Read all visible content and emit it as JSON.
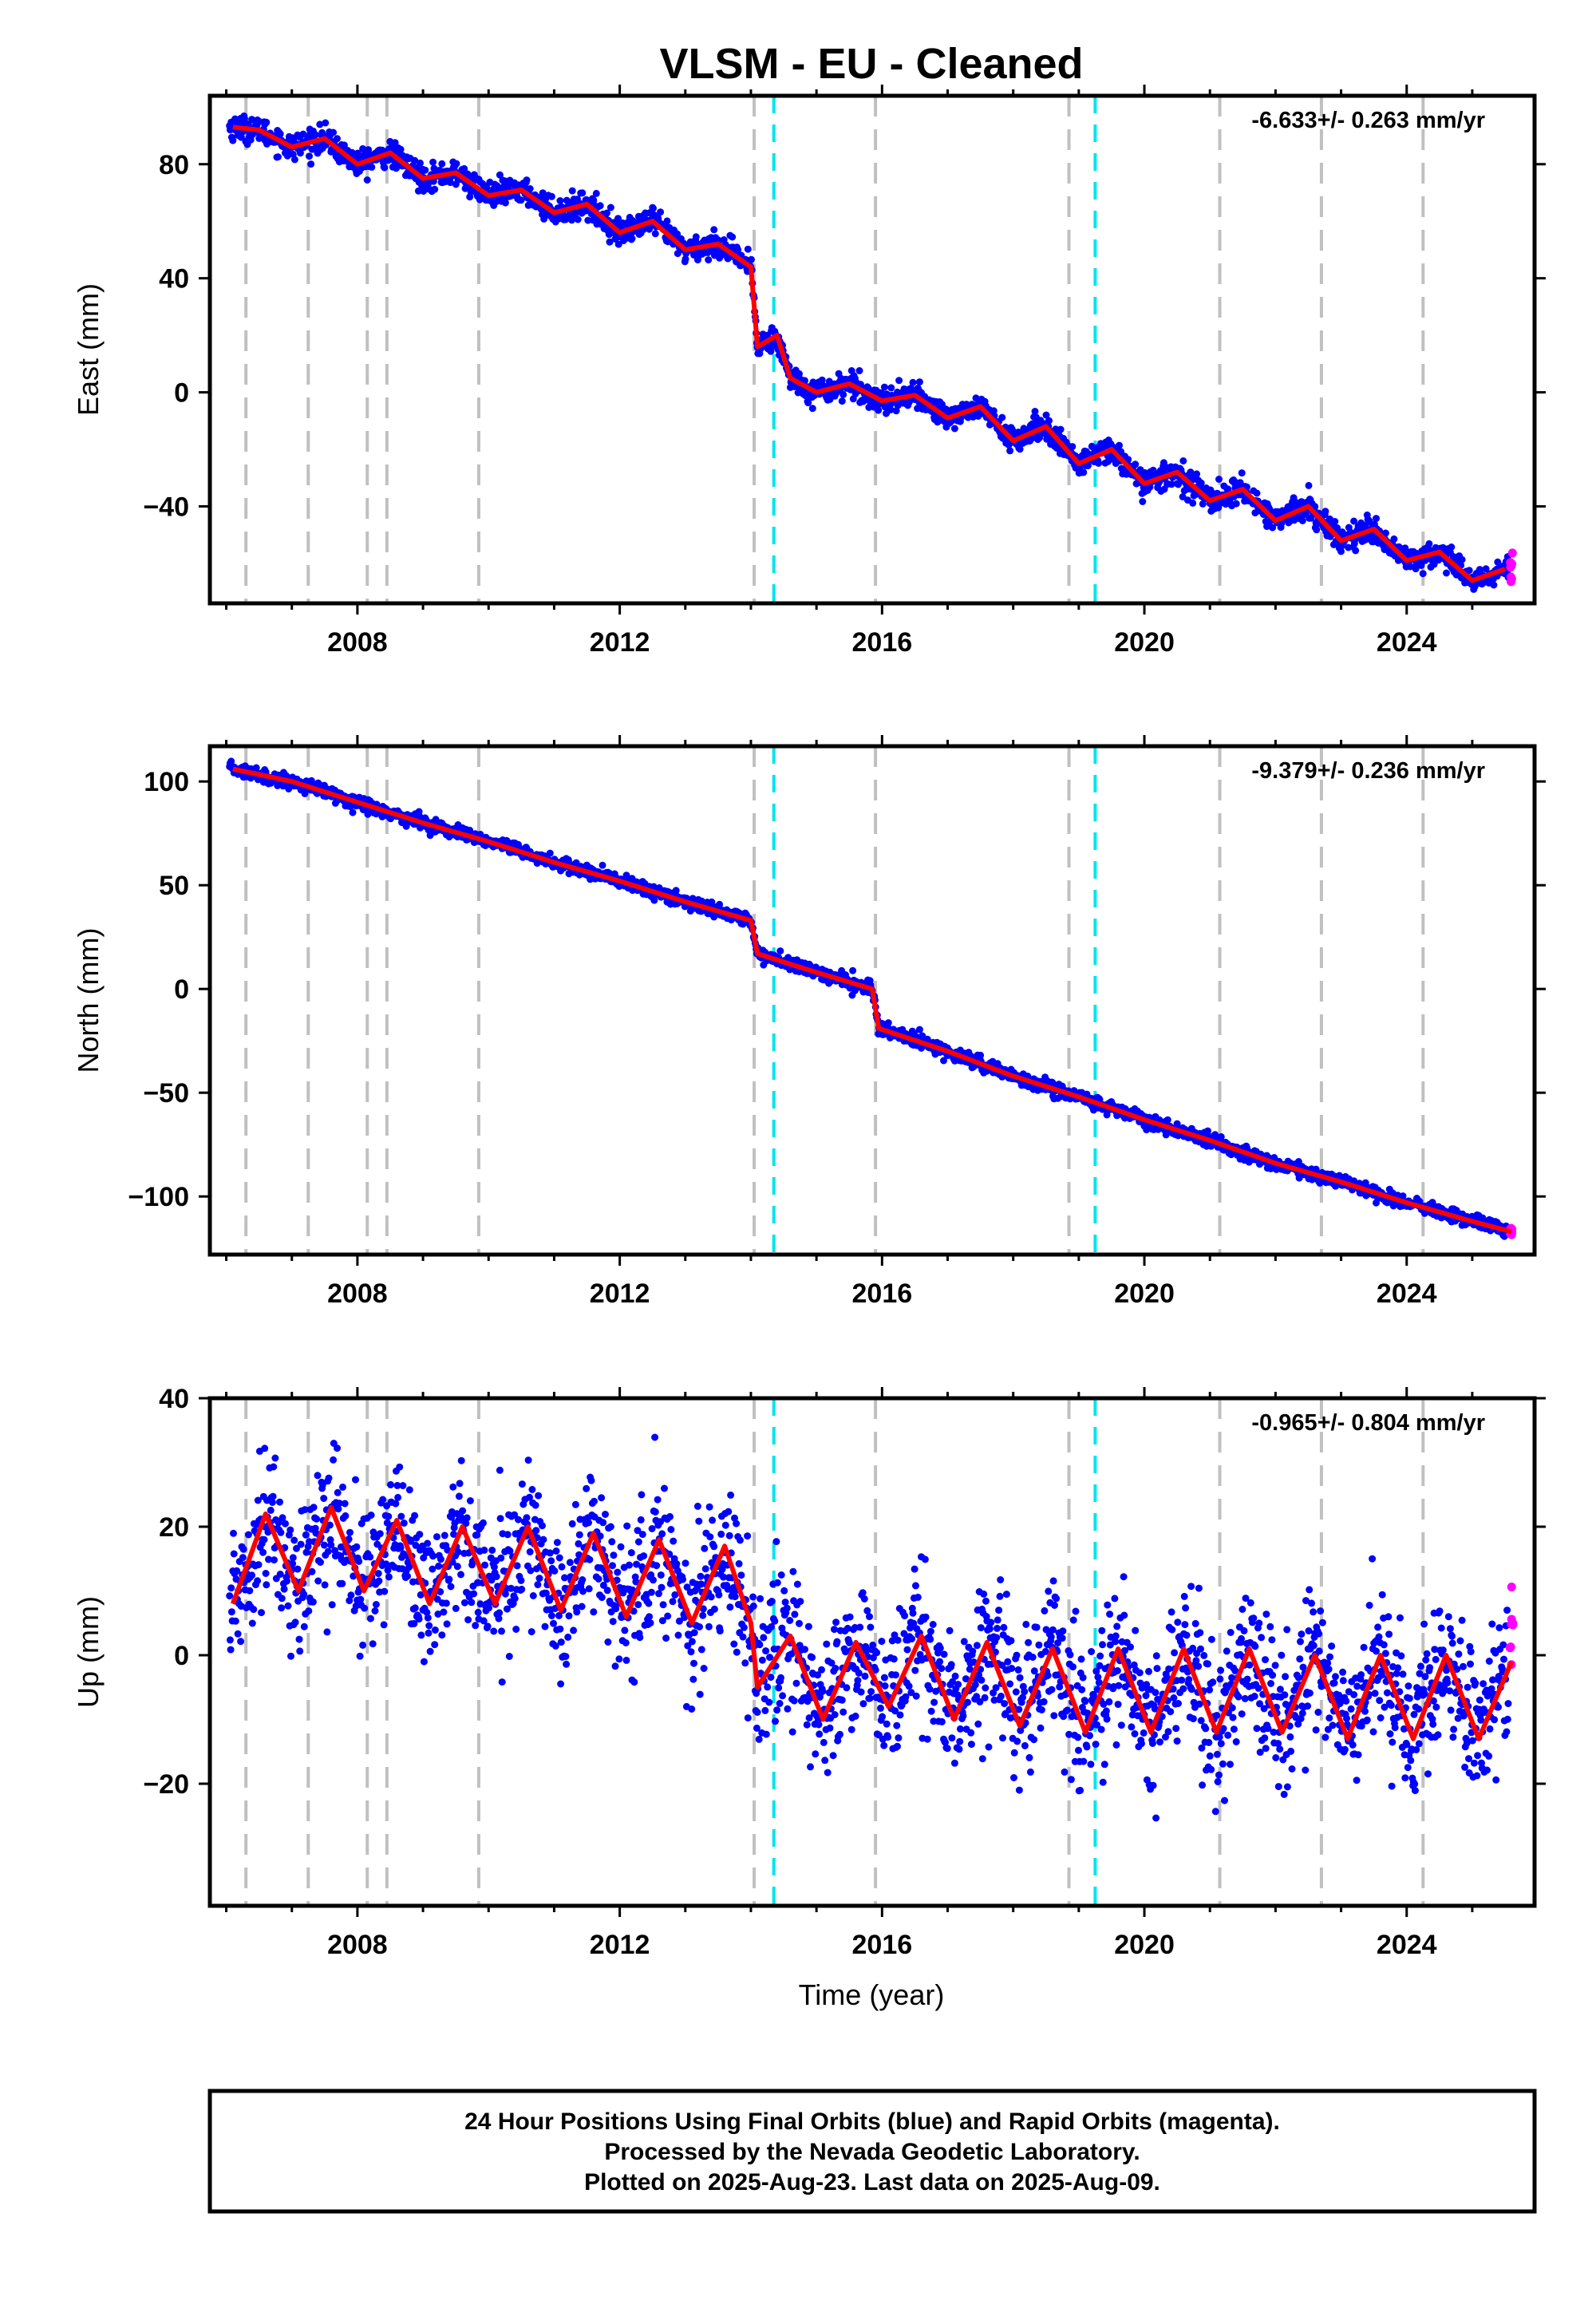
{
  "title": "VLSM  - EU - Cleaned",
  "xlabel": "Time (year)",
  "footer": {
    "line1": "24 Hour Positions Using Final Orbits (blue) and Rapid Orbits (magenta).",
    "line2": "Processed by the Nevada Geodetic Laboratory.",
    "line3": "Plotted on 2025-Aug-23. Last data on 2025-Aug-09."
  },
  "colors": {
    "final_orbits": "#0000ff",
    "rapid_orbits": "#ff00ff",
    "model": "#ff0000",
    "equipment_change": "#c0c0c0",
    "earthquake": "#00e5ee"
  },
  "chart_data": [
    {
      "type": "scatter",
      "component": "East",
      "ylabel": "East (mm)",
      "rate": "-6.633+/- 0.263 mm/yr",
      "xlim": [
        2005.75,
        2025.95
      ],
      "ylim": [
        -74,
        104
      ],
      "xticks": [
        2008,
        2012,
        2016,
        2020,
        2024
      ],
      "yticks": [
        -40,
        0,
        40,
        80
      ],
      "grid": false,
      "gray_dashed_lines": [
        2006.3,
        2007.25,
        2008.15,
        2008.45,
        2009.85,
        2014.05,
        2015.9,
        2018.85,
        2021.15,
        2022.7,
        2024.25
      ],
      "cyan_dashed_lines": [
        2014.35,
        2019.25
      ],
      "series": [
        {
          "x": [
            2006.1,
            2006.5,
            2007.0,
            2007.5,
            2008.0,
            2008.5,
            2009.0,
            2009.5,
            2010.0,
            2010.5,
            2011.0,
            2011.5,
            2012.0,
            2012.5,
            2013.0,
            2013.5,
            2014.0,
            2014.1,
            2014.4,
            2014.6,
            2015.0,
            2015.5,
            2016.0,
            2016.5,
            2017.0,
            2017.5,
            2018.0,
            2018.5,
            2019.0,
            2019.5,
            2020.0,
            2020.5,
            2021.0,
            2021.5,
            2022.0,
            2022.5,
            2023.0,
            2023.5,
            2024.0,
            2024.5,
            2025.0,
            2025.5
          ],
          "y": [
            93,
            92,
            86,
            89,
            80,
            84,
            75,
            77,
            69,
            71,
            63,
            66,
            56,
            60,
            50,
            52,
            44,
            16,
            20,
            5,
            0,
            3,
            -3,
            -1,
            -9,
            -5,
            -17,
            -12,
            -25,
            -20,
            -32,
            -28,
            -38,
            -34,
            -45,
            -40,
            -52,
            -48,
            -59,
            -56,
            -66,
            -62
          ]
        }
      ]
    },
    {
      "type": "scatter",
      "component": "North",
      "ylabel": "North (mm)",
      "rate": "-9.379+/- 0.236 mm/yr",
      "xlim": [
        2005.75,
        2025.95
      ],
      "ylim": [
        -128,
        117
      ],
      "xticks": [
        2008,
        2012,
        2016,
        2020,
        2024
      ],
      "yticks": [
        -100,
        -50,
        0,
        50,
        100
      ],
      "grid": false,
      "gray_dashed_lines": [
        2006.3,
        2007.25,
        2008.15,
        2008.45,
        2009.85,
        2014.05,
        2015.9,
        2018.85,
        2021.15,
        2022.7,
        2024.25
      ],
      "cyan_dashed_lines": [
        2014.35,
        2019.25
      ],
      "series": [
        {
          "x": [
            2006.1,
            2007.0,
            2008.0,
            2009.0,
            2010.0,
            2011.0,
            2012.0,
            2013.0,
            2014.0,
            2014.1,
            2015.0,
            2015.85,
            2015.95,
            2017.0,
            2018.0,
            2019.0,
            2020.0,
            2021.0,
            2022.0,
            2023.0,
            2024.0,
            2025.0,
            2025.6
          ],
          "y": [
            106,
            100,
            90,
            80,
            71,
            61,
            52,
            42,
            33,
            17,
            8,
            0,
            -19,
            -30,
            -42,
            -52,
            -63,
            -73,
            -84,
            -93,
            -103,
            -112,
            -117
          ]
        }
      ]
    },
    {
      "type": "scatter",
      "component": "Up",
      "ylabel": "Up (mm)",
      "rate": "-0.965+/- 0.804 mm/yr",
      "xlim": [
        2005.75,
        2025.95
      ],
      "ylim": [
        -39,
        40
      ],
      "xticks": [
        2008,
        2012,
        2016,
        2020,
        2024
      ],
      "yticks": [
        -20,
        0,
        20,
        40
      ],
      "grid": false,
      "gray_dashed_lines": [
        2006.3,
        2007.25,
        2008.15,
        2008.45,
        2009.85,
        2014.05,
        2015.9,
        2018.85,
        2021.15,
        2022.7,
        2024.25
      ],
      "cyan_dashed_lines": [
        2014.35,
        2019.25
      ],
      "series": [
        {
          "x": [
            2006.1,
            2006.6,
            2007.1,
            2007.6,
            2008.1,
            2008.6,
            2009.1,
            2009.6,
            2010.1,
            2010.6,
            2011.1,
            2011.6,
            2012.1,
            2012.6,
            2013.1,
            2013.6,
            2014.0,
            2014.1,
            2014.6,
            2015.1,
            2015.6,
            2016.1,
            2016.6,
            2017.1,
            2017.6,
            2018.1,
            2018.6,
            2019.1,
            2019.6,
            2020.1,
            2020.6,
            2021.1,
            2021.6,
            2022.1,
            2022.6,
            2023.1,
            2023.6,
            2024.1,
            2024.6,
            2025.1,
            2025.6
          ],
          "y": [
            8,
            22,
            10,
            23,
            10,
            21,
            8,
            20,
            8,
            20,
            7,
            19,
            6,
            18,
            5,
            17,
            5,
            -5,
            3,
            -10,
            2,
            -8,
            3,
            -10,
            2,
            -11,
            1,
            -12,
            1,
            -12,
            1,
            -12,
            1,
            -12,
            0,
            -13,
            0,
            -13,
            0,
            -13,
            -1
          ]
        }
      ]
    }
  ]
}
